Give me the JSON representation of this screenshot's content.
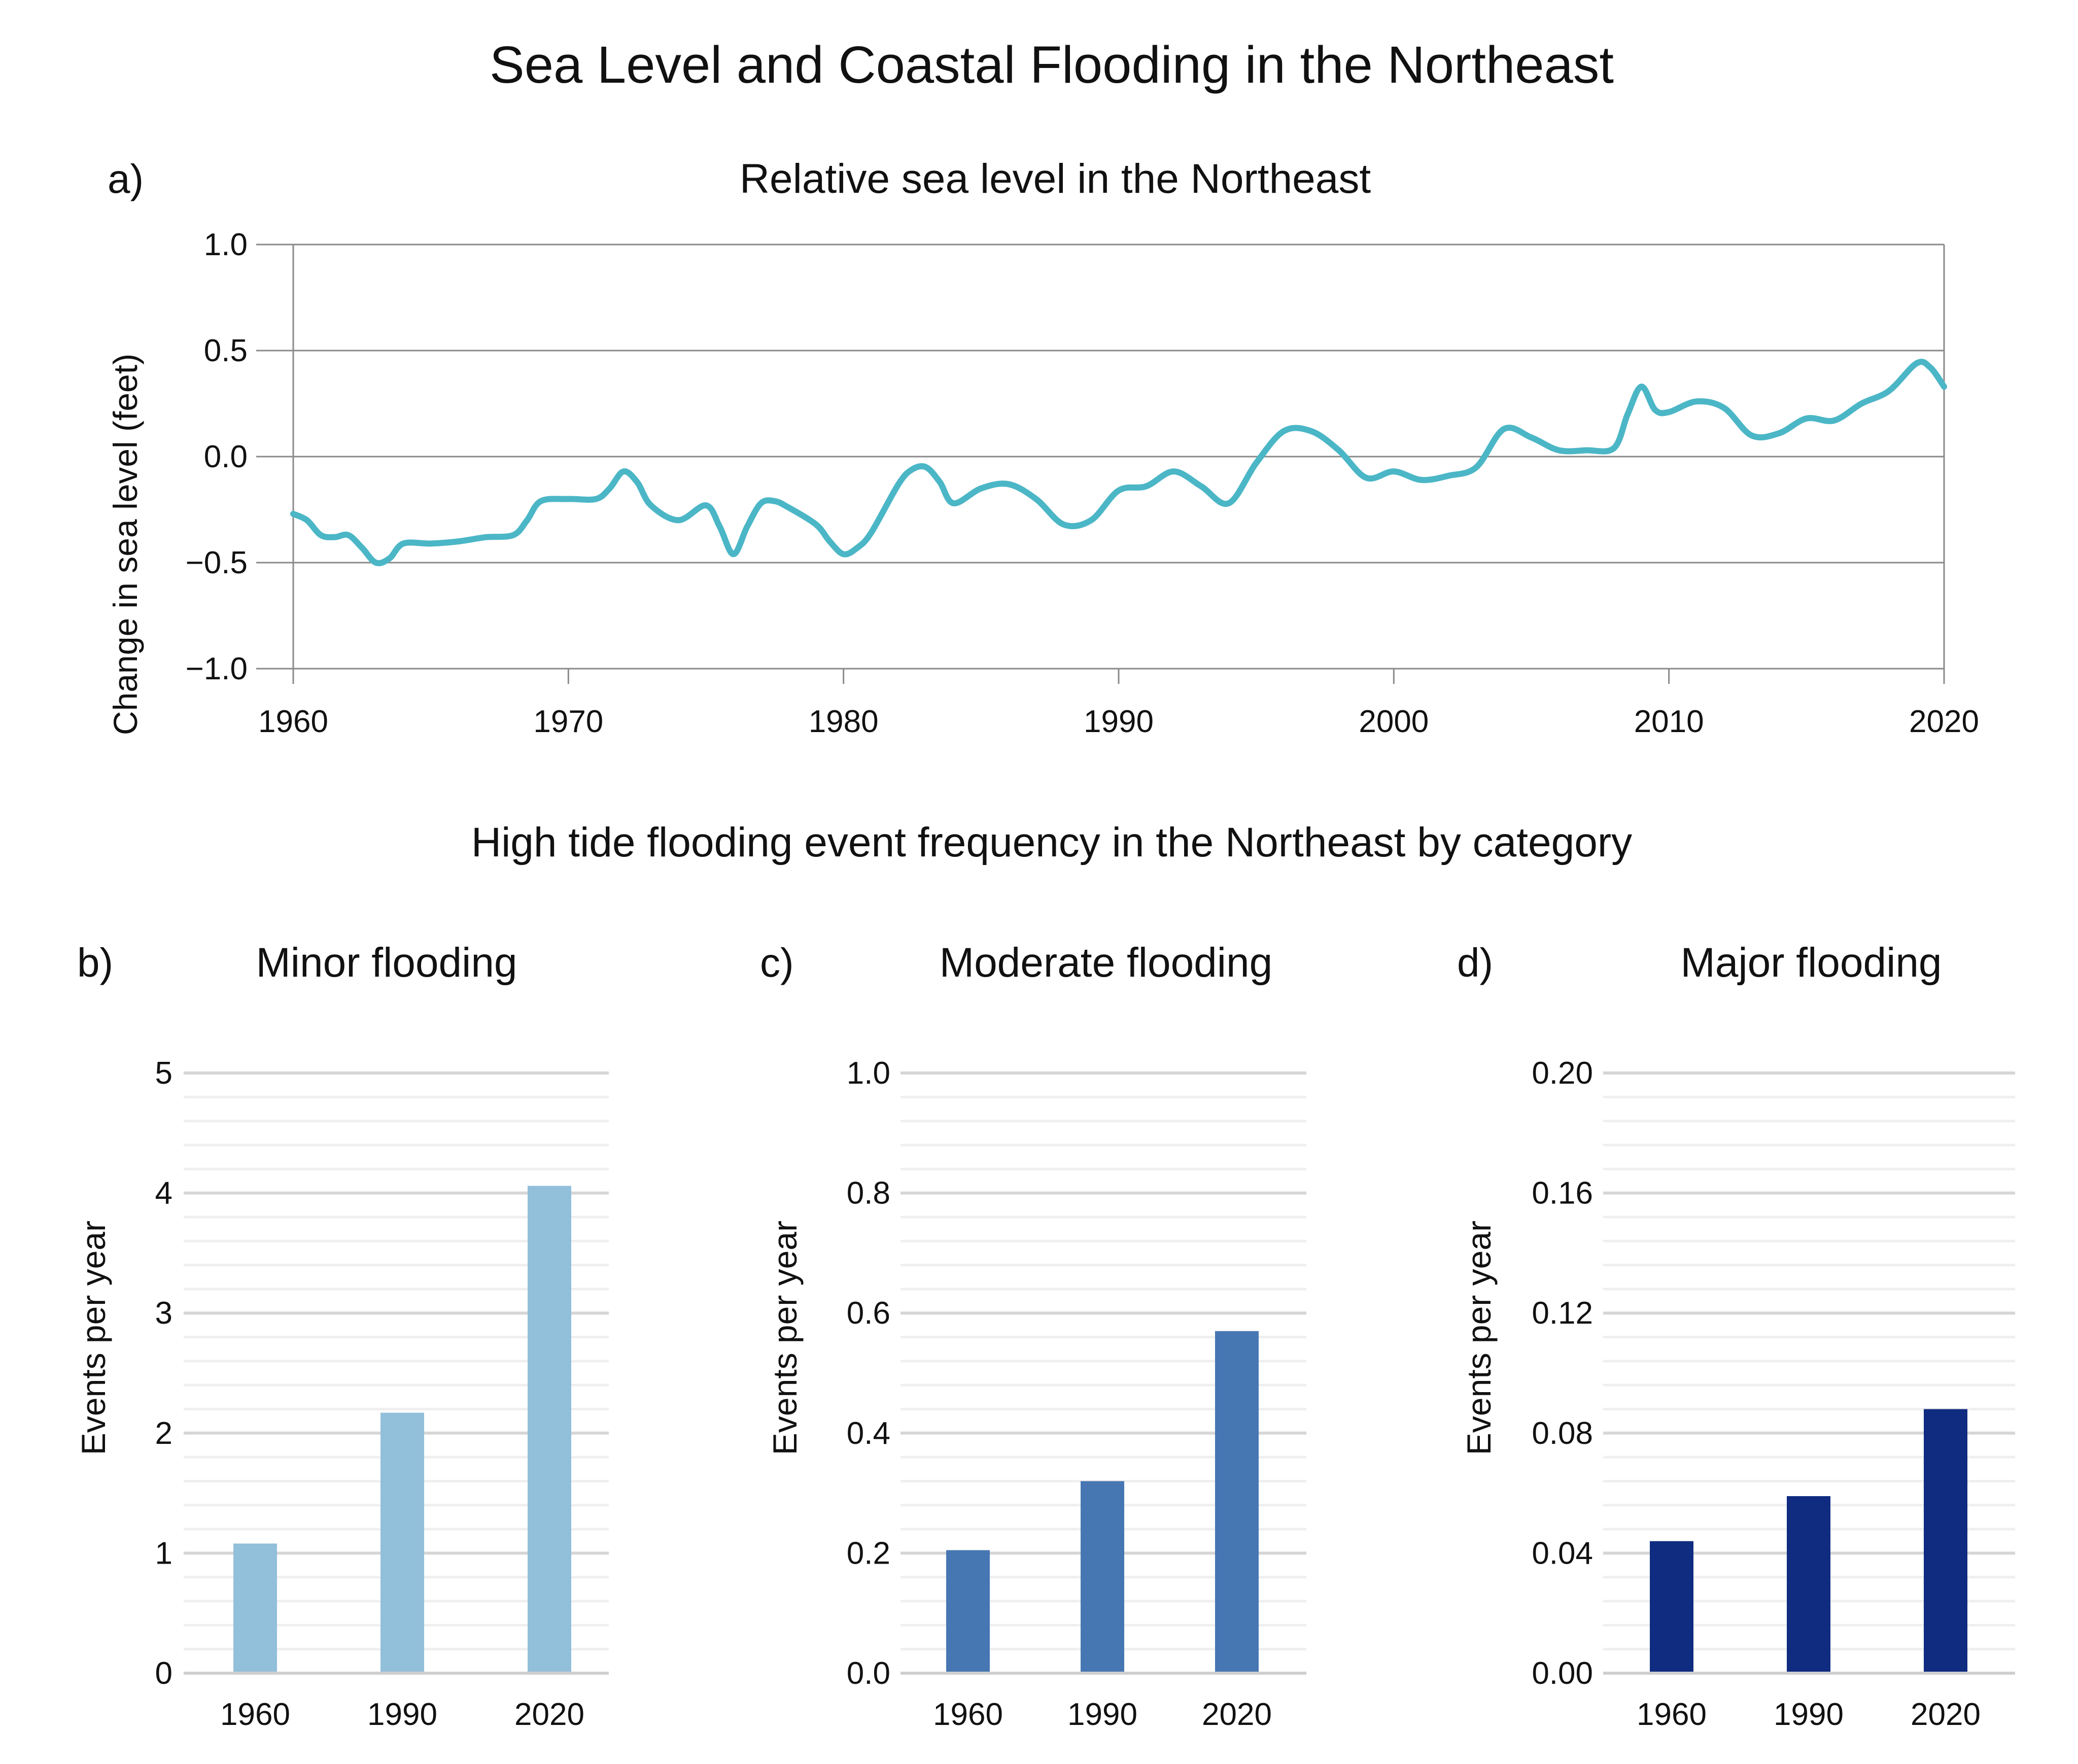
{
  "figure": {
    "title": "Sea Level and Coastal Flooding in the Northeast",
    "section_title": "High tide flooding event frequency in the Northeast by category"
  },
  "chart_data": [
    {
      "panel": "a)",
      "type": "line",
      "title": "Relative sea level in the Northeast",
      "xlabel": "",
      "ylabel": "Change in sea level (feet)",
      "xlim": [
        1960,
        2020
      ],
      "ylim": [
        -1.0,
        1.0
      ],
      "x_ticks": [
        "1960",
        "1970",
        "1980",
        "1990",
        "2000",
        "2010",
        "2020"
      ],
      "y_ticks": [
        "1.0",
        "0.5",
        "0.0",
        "−0.5",
        "−1.0"
      ],
      "grid": true,
      "color": "#4bb6c6",
      "series": [
        {
          "x": [
            1960,
            1960.5,
            1961,
            1961.5,
            1962,
            1962.5,
            1963,
            1963.5,
            1964,
            1965,
            1966,
            1967,
            1968,
            1968.5,
            1969,
            1970,
            1971,
            1971.5,
            1972,
            1972.5,
            1973,
            1974,
            1975,
            1975.5,
            1976,
            1976.5,
            1977,
            1977.5,
            1978,
            1979,
            1979.5,
            1980,
            1980.5,
            1981,
            1982,
            1982.5,
            1983,
            1983.5,
            1984,
            1985,
            1986,
            1987,
            1988,
            1989,
            1990,
            1991,
            1992,
            1993,
            1994,
            1995,
            1996,
            1997,
            1998,
            1999,
            2000,
            2001,
            2002,
            2003,
            2004,
            2005,
            2006,
            2007,
            2008,
            2008.5,
            2009,
            2009.5,
            2010,
            2011,
            2012,
            2013,
            2014,
            2015,
            2016,
            2017,
            2018,
            2019,
            2019.5,
            2020
          ],
          "y": [
            -0.27,
            -0.3,
            -0.37,
            -0.38,
            -0.37,
            -0.43,
            -0.5,
            -0.48,
            -0.41,
            -0.41,
            -0.4,
            -0.38,
            -0.37,
            -0.3,
            -0.21,
            -0.2,
            -0.2,
            -0.15,
            -0.07,
            -0.12,
            -0.23,
            -0.3,
            -0.23,
            -0.33,
            -0.46,
            -0.33,
            -0.22,
            -0.21,
            -0.24,
            -0.32,
            -0.4,
            -0.46,
            -0.43,
            -0.36,
            -0.13,
            -0.06,
            -0.05,
            -0.12,
            -0.22,
            -0.15,
            -0.13,
            -0.2,
            -0.32,
            -0.3,
            -0.16,
            -0.14,
            -0.07,
            -0.14,
            -0.22,
            -0.03,
            0.12,
            0.12,
            0.03,
            -0.1,
            -0.07,
            -0.11,
            -0.09,
            -0.05,
            0.13,
            0.09,
            0.03,
            0.03,
            0.04,
            0.2,
            0.33,
            0.22,
            0.21,
            0.26,
            0.23,
            0.1,
            0.11,
            0.18,
            0.17,
            0.25,
            0.31,
            0.44,
            0.42,
            0.33
          ]
        }
      ]
    },
    {
      "panel": "b)",
      "type": "bar",
      "title": "Minor flooding",
      "ylabel": "Events per year",
      "categories": [
        "1960",
        "1990",
        "2020"
      ],
      "values": [
        1.08,
        2.17,
        4.06
      ],
      "ylim": [
        0,
        5
      ],
      "y_ticks": [
        "0",
        "1",
        "2",
        "3",
        "4",
        "5"
      ],
      "color": "#92bfda"
    },
    {
      "panel": "c)",
      "type": "bar",
      "title": "Moderate flooding",
      "ylabel": "Events per year",
      "categories": [
        "1960",
        "1990",
        "2020"
      ],
      "values": [
        0.205,
        0.32,
        0.57
      ],
      "ylim": [
        0,
        1.0
      ],
      "y_ticks": [
        "0.0",
        "0.2",
        "0.4",
        "0.6",
        "0.8",
        "1.0"
      ],
      "color": "#4777b3"
    },
    {
      "panel": "d)",
      "type": "bar",
      "title": "Major flooding",
      "ylabel": "Events per year",
      "categories": [
        "1960",
        "1990",
        "2020"
      ],
      "values": [
        0.044,
        0.059,
        0.088
      ],
      "ylim": [
        0,
        0.2
      ],
      "y_ticks": [
        "0.00",
        "0.04",
        "0.08",
        "0.12",
        "0.16",
        "0.20"
      ],
      "color": "#0f2c80"
    }
  ]
}
